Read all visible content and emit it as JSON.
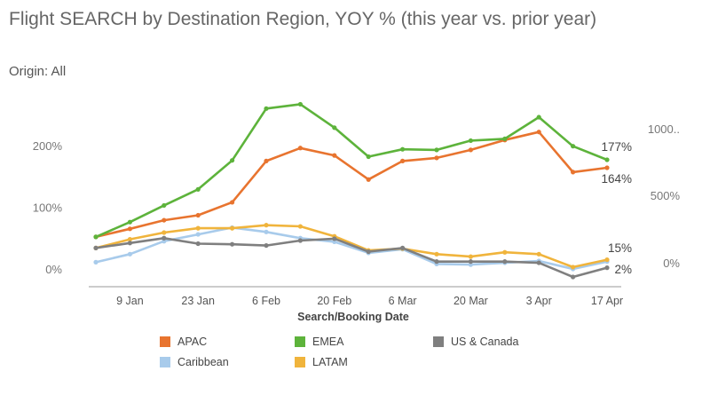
{
  "title": "Flight SEARCH by Destination Region, YOY % (this year vs. prior year)",
  "subtitle": "Origin: All",
  "chart_data": {
    "type": "line",
    "xlabel": "Search/Booking Date",
    "x": [
      "2 Jan",
      "9 Jan",
      "16 Jan",
      "23 Jan",
      "30 Jan",
      "6 Feb",
      "13 Feb",
      "20 Feb",
      "27 Feb",
      "6 Mar",
      "13 Mar",
      "20 Mar",
      "27 Mar",
      "3 Apr",
      "10 Apr",
      "17 Apr"
    ],
    "x_tick_labels": [
      "9 Jan",
      "23 Jan",
      "6 Feb",
      "20 Feb",
      "6 Mar",
      "20 Mar",
      "3 Apr",
      "17 Apr"
    ],
    "y_left_ticks": [
      "200%",
      "100%",
      "0%"
    ],
    "y_left_tick_values": [
      200,
      100,
      0
    ],
    "y_right_ticks": [
      "1000..",
      "500%",
      "0%"
    ],
    "ylim": [
      -12,
      280
    ],
    "grid": false,
    "legend_position": "bottom",
    "series": [
      {
        "name": "APAC",
        "color": "#E8742F",
        "values": [
          52,
          65,
          79,
          87,
          108,
          175,
          196,
          184,
          145,
          175,
          180,
          193,
          209,
          222,
          157,
          164
        ],
        "end_label": "164%"
      },
      {
        "name": "EMEA",
        "color": "#5DB33B",
        "values": [
          52,
          76,
          103,
          129,
          176,
          260,
          267,
          229,
          182,
          194,
          193,
          208,
          211,
          246,
          199,
          177
        ],
        "end_label": "177%"
      },
      {
        "name": "US & Canada",
        "color": "#7F7F7F",
        "values": [
          34,
          42,
          50,
          41,
          40,
          38,
          46,
          49,
          28,
          34,
          12,
          12,
          12,
          10,
          -13,
          2
        ],
        "end_label": "2%"
      },
      {
        "name": "Caribbean",
        "color": "#A8CBEB",
        "values": [
          11,
          24,
          45,
          56,
          67,
          60,
          50,
          44,
          26,
          32,
          8,
          7,
          10,
          13,
          0,
          12
        ]
      },
      {
        "name": "LATAM",
        "color": "#F0B43C",
        "values": [
          34,
          48,
          59,
          66,
          66,
          71,
          69,
          53,
          30,
          33,
          24,
          20,
          27,
          24,
          3,
          15
        ],
        "end_label": "15%"
      }
    ]
  },
  "legend": [
    "APAC",
    "EMEA",
    "US & Canada",
    "Caribbean",
    "LATAM"
  ]
}
